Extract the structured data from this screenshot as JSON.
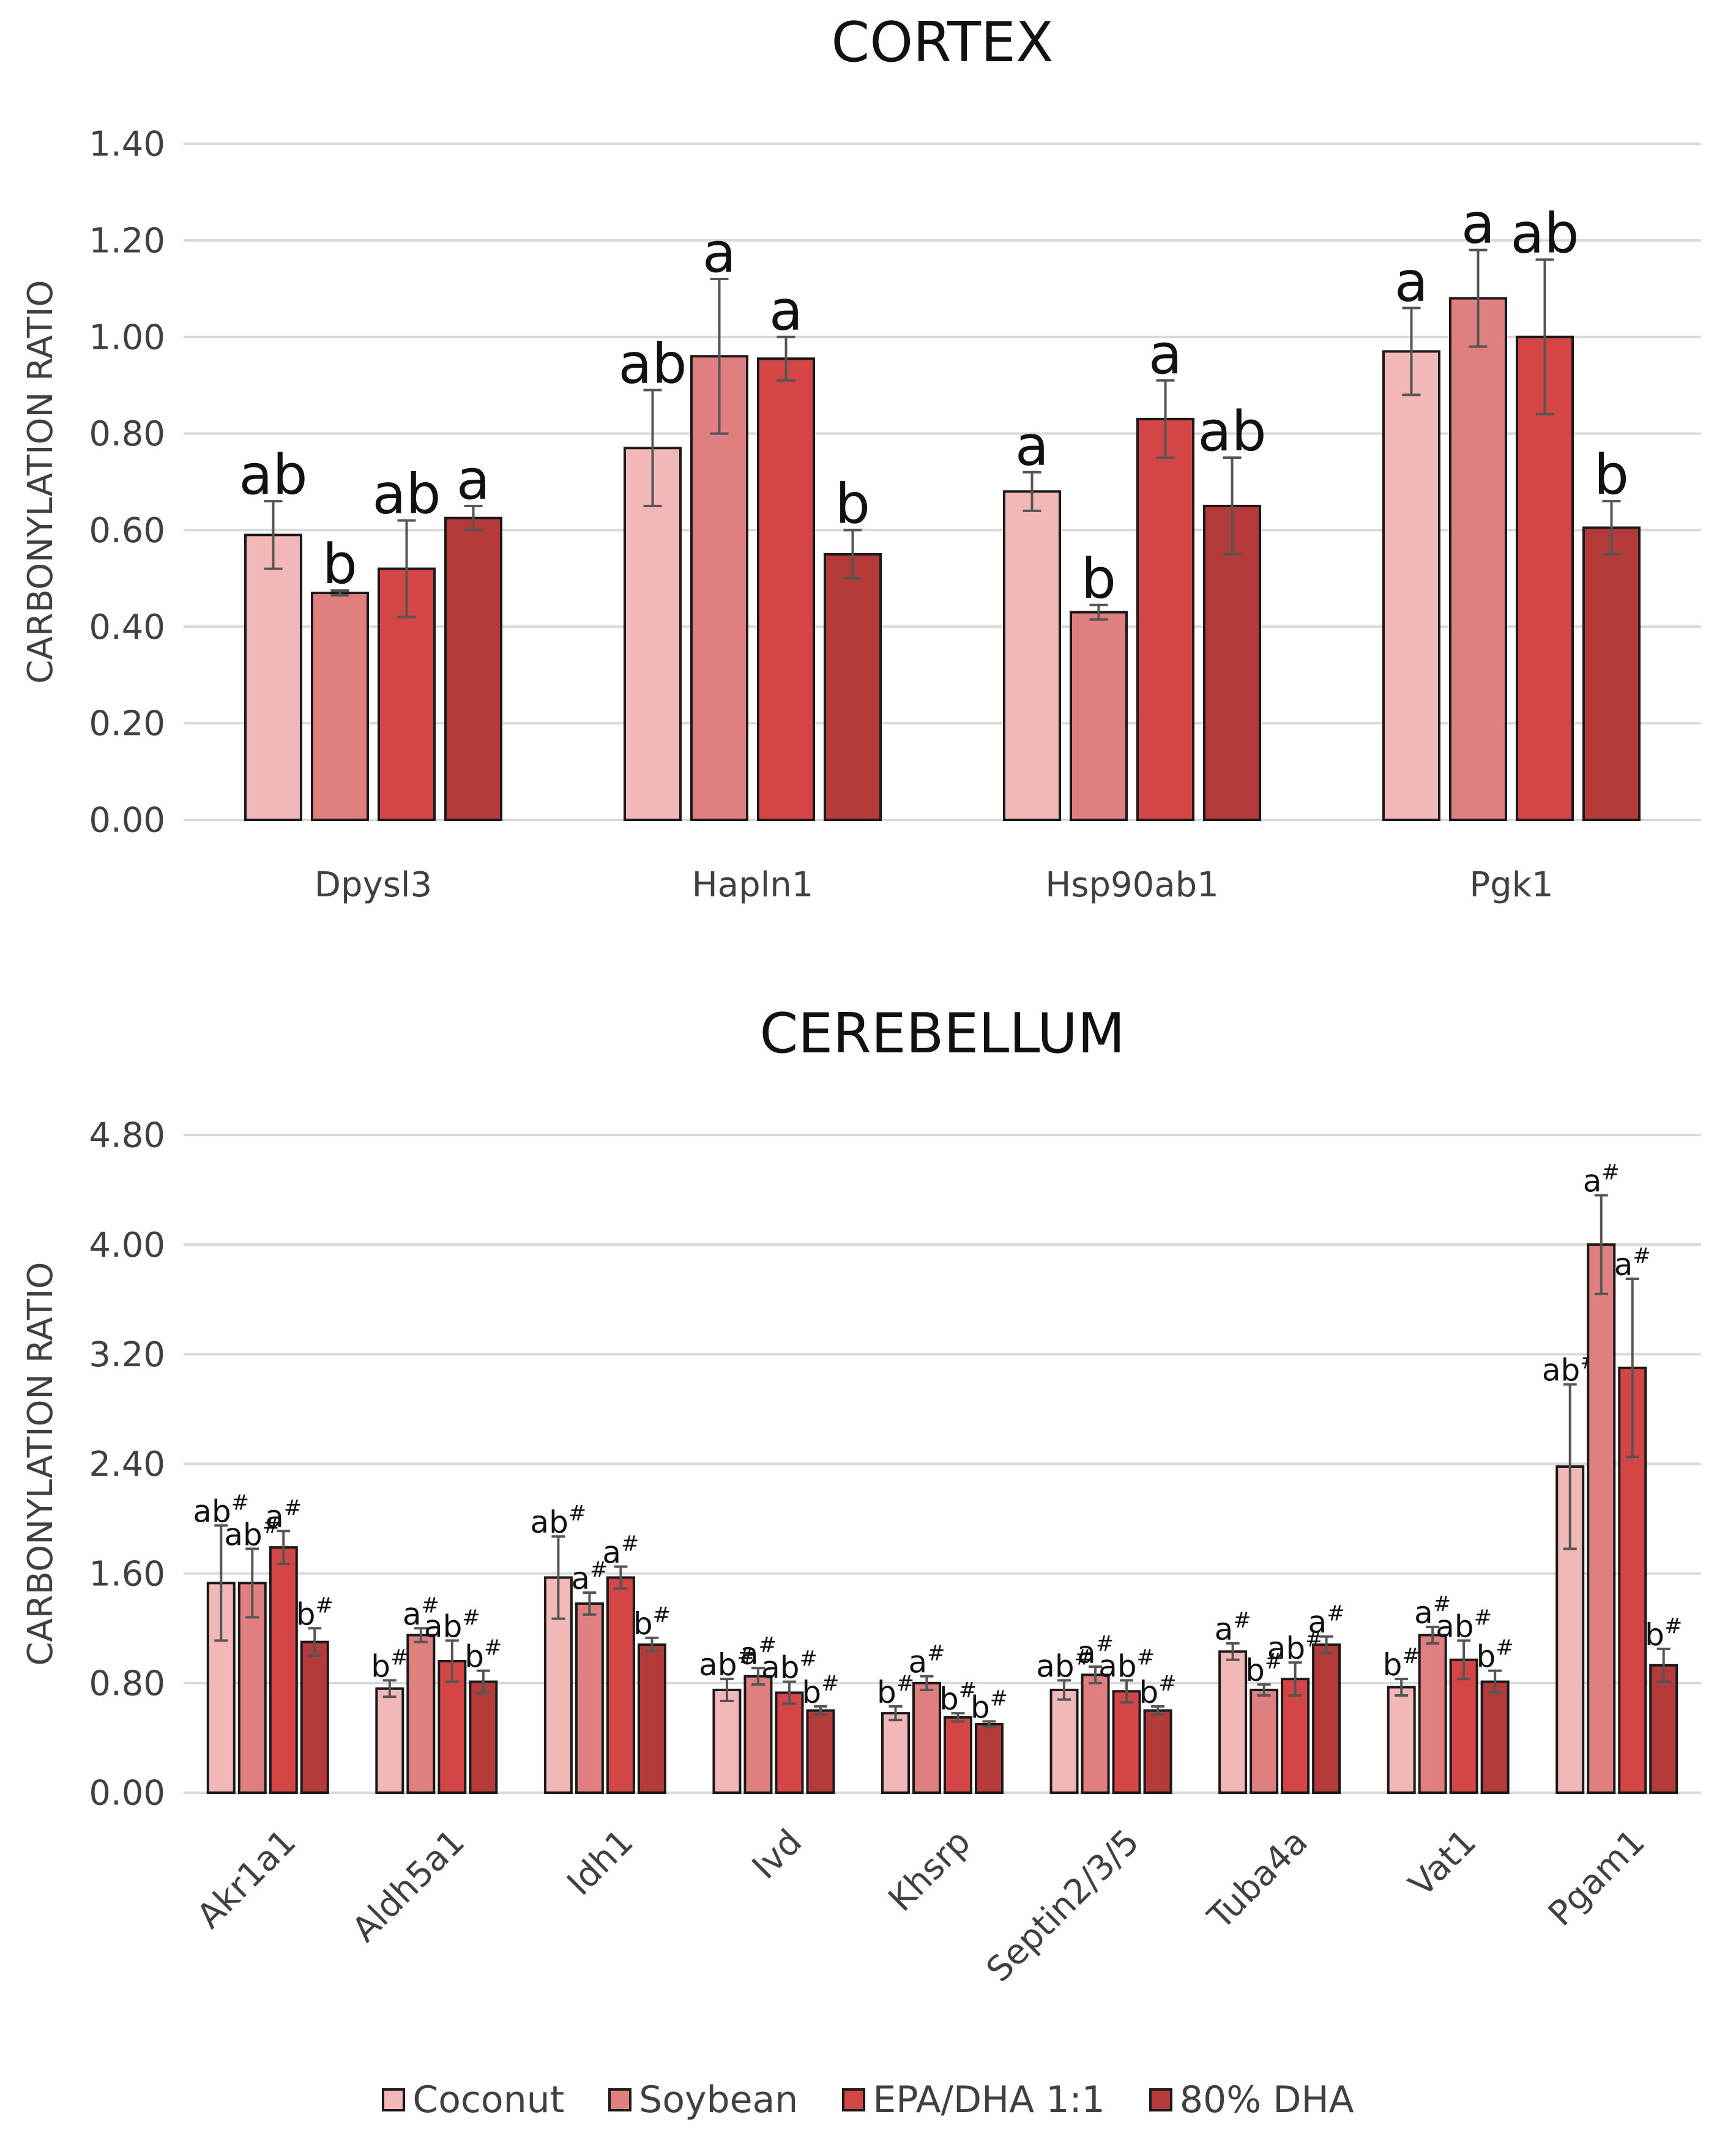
{
  "colors": {
    "coconut": "#f2b8b8",
    "soybean": "#e07f7f",
    "epadha": "#d44545",
    "dha80": "#b53a3a",
    "grid": "#d9d9d9",
    "axis_text": "#404040",
    "bar_edge": "#1a1a1a",
    "error_bar": "#555555"
  },
  "legend": {
    "items": [
      {
        "label": "Coconut",
        "color": "#f2b8b8"
      },
      {
        "label": "Soybean",
        "color": "#e07f7f"
      },
      {
        "label": "EPA/DHA 1:1",
        "color": "#d44545"
      },
      {
        "label": "80% DHA",
        "color": "#b53a3a"
      }
    ]
  },
  "chart_data": [
    {
      "type": "bar",
      "title": "CORTEX",
      "xlabel": "",
      "ylabel": "CARBONYLATION RATIO",
      "ylim": [
        0,
        1.4
      ],
      "yticks": [
        "0.00",
        "0.20",
        "0.40",
        "0.60",
        "0.80",
        "1.00",
        "1.20",
        "1.40"
      ],
      "grid": true,
      "categories": [
        "Dpysl3",
        "Hapln1",
        "Hsp90ab1",
        "Pgk1"
      ],
      "series": [
        {
          "name": "Coconut",
          "values": [
            0.59,
            0.77,
            0.68,
            0.97
          ],
          "errors": [
            0.07,
            0.12,
            0.04,
            0.09
          ],
          "labels": [
            "ab",
            "ab",
            "a",
            "a"
          ]
        },
        {
          "name": "Soybean",
          "values": [
            0.47,
            0.96,
            0.43,
            1.08
          ],
          "errors": [
            0.005,
            0.16,
            0.015,
            0.1
          ],
          "labels": [
            "b",
            "a",
            "b",
            "a"
          ]
        },
        {
          "name": "EPA/DHA 1:1",
          "values": [
            0.52,
            0.955,
            0.83,
            1.0
          ],
          "errors": [
            0.1,
            0.045,
            0.08,
            0.16
          ],
          "labels": [
            "ab",
            "a",
            "a",
            "ab"
          ]
        },
        {
          "name": "80% DHA",
          "values": [
            0.625,
            0.55,
            0.65,
            0.605
          ],
          "errors": [
            0.025,
            0.05,
            0.1,
            0.055
          ],
          "labels": [
            "a",
            "b",
            "ab",
            "b"
          ]
        }
      ]
    },
    {
      "type": "bar",
      "title": "CEREBELLUM",
      "xlabel": "",
      "ylabel": "CARBONYLATION RATIO",
      "ylim": [
        0,
        4.8
      ],
      "yticks": [
        "0.00",
        "0.80",
        "1.60",
        "2.40",
        "3.20",
        "4.00",
        "4.80"
      ],
      "grid": true,
      "categories": [
        "Akr1a1",
        "Aldh5a1",
        "Idh1",
        "Ivd",
        "Khsrp",
        "Septin2/3/5",
        "Tuba4a",
        "Vat1",
        "Pgam1"
      ],
      "series": [
        {
          "name": "Coconut",
          "values": [
            1.53,
            0.76,
            1.57,
            0.75,
            0.58,
            0.75,
            1.03,
            0.77,
            2.38
          ],
          "errors": [
            0.42,
            0.06,
            0.3,
            0.08,
            0.05,
            0.07,
            0.06,
            0.06,
            0.6
          ],
          "labels": [
            "ab#",
            "b#",
            "ab#",
            "ab#",
            "b#",
            "ab#",
            "a#",
            "b#",
            "ab#"
          ]
        },
        {
          "name": "Soybean",
          "values": [
            1.53,
            1.15,
            1.38,
            0.85,
            0.8,
            0.86,
            0.75,
            1.15,
            4.0
          ],
          "errors": [
            0.25,
            0.05,
            0.08,
            0.06,
            0.05,
            0.06,
            0.04,
            0.06,
            0.36
          ],
          "labels": [
            "ab#",
            "a#",
            "a#",
            "a#",
            "a#",
            "a#",
            "b#",
            "a#",
            "a#"
          ]
        },
        {
          "name": "EPA/DHA 1:1",
          "values": [
            1.79,
            0.96,
            1.57,
            0.73,
            0.55,
            0.74,
            0.83,
            0.97,
            3.1
          ],
          "errors": [
            0.12,
            0.15,
            0.08,
            0.08,
            0.03,
            0.08,
            0.12,
            0.14,
            0.65
          ],
          "labels": [
            "a#",
            "ab#",
            "a#",
            "ab#",
            "b#",
            "ab#",
            "ab#",
            "ab#",
            "a#"
          ]
        },
        {
          "name": "80% DHA",
          "values": [
            1.1,
            0.81,
            1.08,
            0.6,
            0.5,
            0.6,
            1.08,
            0.81,
            0.93
          ],
          "errors": [
            0.1,
            0.08,
            0.05,
            0.03,
            0.02,
            0.03,
            0.06,
            0.08,
            0.12
          ],
          "labels": [
            "b#",
            "b#",
            "b#",
            "b#",
            "b#",
            "b#",
            "a#",
            "b#",
            "b#"
          ]
        }
      ]
    }
  ]
}
